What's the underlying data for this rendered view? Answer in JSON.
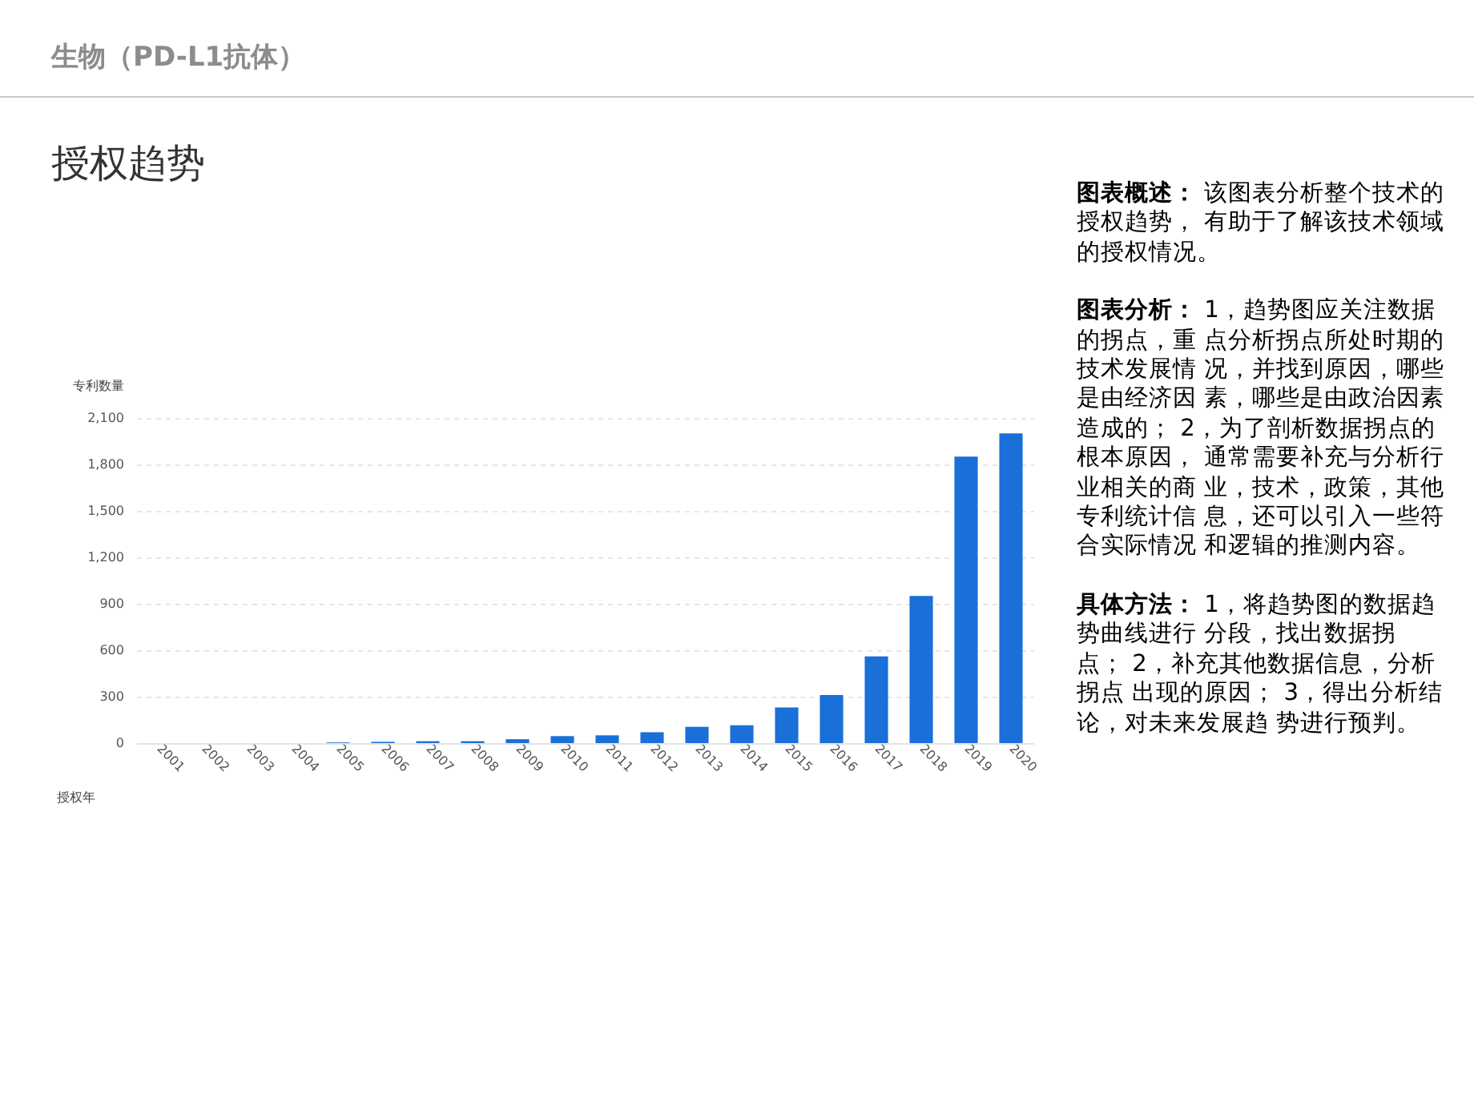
{
  "chart_data": {
    "type": "bar",
    "title": "生物（PD-L1抗体）",
    "subtitle": "授权趋势",
    "xlabel": "授权年",
    "ylabel": "专利数量",
    "categories": [
      "2001",
      "2002",
      "2003",
      "2004",
      "2005",
      "2006",
      "2007",
      "2008",
      "2009",
      "2010",
      "2011",
      "2012",
      "2013",
      "2014",
      "2015",
      "2016",
      "2017",
      "2018",
      "2019",
      "2020"
    ],
    "values": [
      0,
      0,
      0,
      0,
      4,
      8,
      12,
      12,
      25,
      45,
      50,
      70,
      105,
      115,
      230,
      310,
      560,
      950,
      1850,
      2000
    ],
    "color": "#1a6fd8",
    "ylim": [
      0,
      2100
    ],
    "yticks": [
      {
        "value": 0,
        "label": "0"
      },
      {
        "value": 300,
        "label": "300"
      },
      {
        "value": 600,
        "label": "600"
      },
      {
        "value": 900,
        "label": "900"
      },
      {
        "value": 1200,
        "label": "1,200"
      },
      {
        "value": 1500,
        "label": "1,500"
      },
      {
        "value": 1800,
        "label": "1,800"
      },
      {
        "value": 2100,
        "label": "2,100"
      }
    ],
    "grid": "y",
    "annotations": [
      "图表概述： 该图表分析整个技术的授权趋势， 有助于了解该技术领域的授权情况。",
      "图表分析： 1，趋势图应关注数据的拐点，重 点分析拐点所处时期的技术发展情 况，并找到原因，哪些是由经济因 素，哪些是由政治因素造成的； 2，为了剖析数据拐点的根本原因， 通常需要补充与分析行业相关的商 业，技术，政策，其他专利统计信 息，还可以引入一些符合实际情况 和逻辑的推测内容。",
      "具体方法： 1，将趋势图的数据趋势曲线进行 分段，找出数据拐点； 2，补充其他数据信息，分析拐点 出现的原因； 3，得出分析结论，对未来发展趋 势进行预判。"
    ]
  }
}
